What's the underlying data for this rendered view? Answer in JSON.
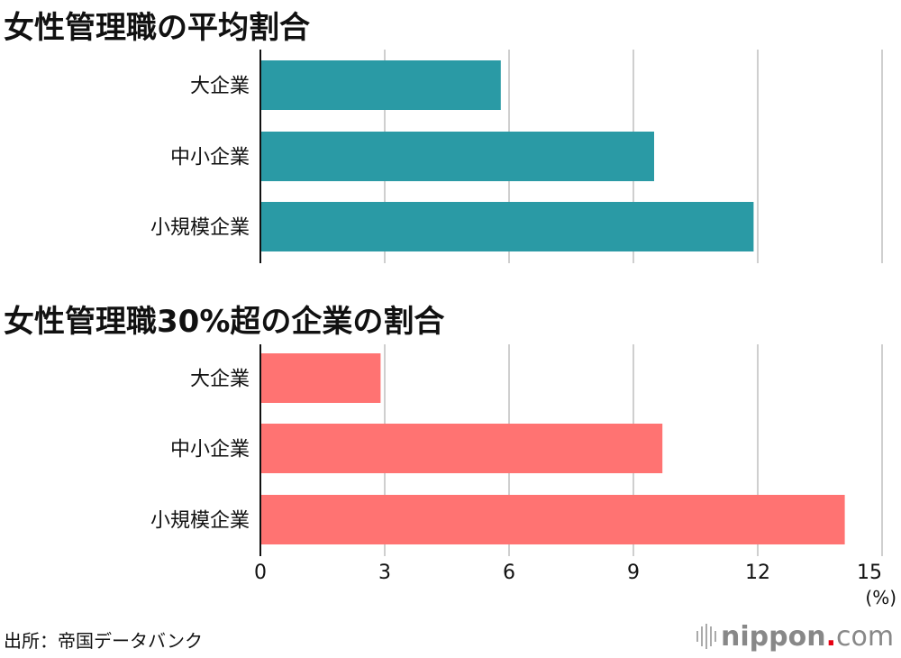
{
  "chart_data": [
    {
      "type": "bar",
      "orientation": "horizontal",
      "title": "女性管理職の平均割合",
      "categories": [
        "大企業",
        "中小企業",
        "小規模企業"
      ],
      "values": [
        5.8,
        9.5,
        11.9
      ],
      "color": "#2a9aa5",
      "xlim": [
        0,
        15
      ],
      "grid": true
    },
    {
      "type": "bar",
      "orientation": "horizontal",
      "title": "女性管理職30%超の企業の割合",
      "categories": [
        "大企業",
        "中小企業",
        "小規模企業"
      ],
      "values": [
        2.9,
        9.7,
        14.1
      ],
      "color": "#ff7372",
      "xlim": [
        0,
        15
      ],
      "grid": true
    }
  ],
  "axis": {
    "ticks": [
      0,
      3,
      6,
      9,
      12,
      15
    ],
    "unit": "(%)"
  },
  "source": "出所：帝国データバンク",
  "logo": {
    "main": "nippon",
    "dot": ".",
    "suffix": "com",
    "dot_color": "#e60012"
  }
}
